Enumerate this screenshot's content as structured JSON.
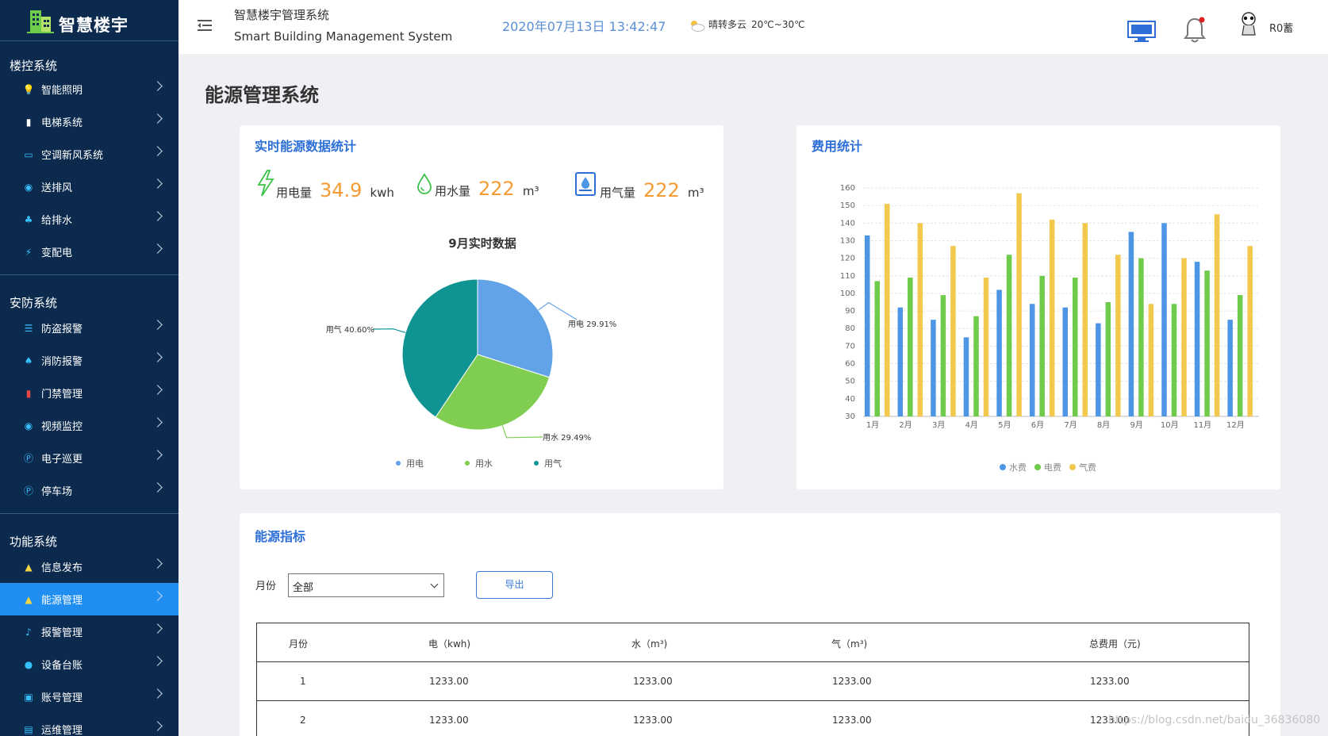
{
  "sidebar": {
    "logo_text": "智慧楼宇",
    "groups": [
      {
        "title": "楼控系统",
        "items": [
          {
            "label": "智能照明",
            "icon": "bulb-icon"
          },
          {
            "label": "电梯系统",
            "icon": "elevator-icon"
          },
          {
            "label": "空调新风系统",
            "icon": "aircon-icon"
          },
          {
            "label": "送排风",
            "icon": "fan-icon"
          },
          {
            "label": "给排水",
            "icon": "water-icon"
          },
          {
            "label": "变配电",
            "icon": "power-icon"
          }
        ]
      },
      {
        "title": "安防系统",
        "items": [
          {
            "label": "防盗报警",
            "icon": "list-icon"
          },
          {
            "label": "消防报警",
            "icon": "fire-icon"
          },
          {
            "label": "门禁管理",
            "icon": "door-icon"
          },
          {
            "label": "视频监控",
            "icon": "camera-icon"
          },
          {
            "label": "电子巡更",
            "icon": "patrol-icon"
          },
          {
            "label": "停车场",
            "icon": "parking-icon"
          }
        ]
      },
      {
        "title": "功能系统",
        "items": [
          {
            "label": "信息发布",
            "icon": "broadcast-icon"
          },
          {
            "label": "能源管理",
            "icon": "energy-icon",
            "active": true
          },
          {
            "label": "报警管理",
            "icon": "bell-icon"
          },
          {
            "label": "设备台账",
            "icon": "device-icon"
          },
          {
            "label": "账号管理",
            "icon": "account-icon"
          },
          {
            "label": "运维管理",
            "icon": "maintenance-icon"
          }
        ]
      }
    ]
  },
  "header": {
    "title_cn": "智慧楼宇管理系统",
    "title_en": "Smart Building Management System",
    "datetime": "2020年07月13日 13:42:47",
    "weather": "晴转多云",
    "temperature": "20℃~30℃",
    "username": "R0蓄"
  },
  "page_title": "能源管理系统",
  "realtime_card": {
    "title": "实时能源数据统计",
    "stats": [
      {
        "label": "用电量",
        "value": "34.9",
        "unit": "kwh",
        "icon": "lightning-icon"
      },
      {
        "label": "用水量",
        "value": "222",
        "unit": "m³",
        "icon": "water-drop-icon"
      },
      {
        "label": "用气量",
        "value": "222",
        "unit": "m³",
        "icon": "gas-icon"
      }
    ],
    "accent_color": "#f39c34"
  },
  "cost_card": {
    "title": "费用统计"
  },
  "indicator_card": {
    "title": "能源指标",
    "filter_label": "月份",
    "select_value": "全部",
    "export_label": "导出",
    "columns": [
      "月份",
      "电（kwh)",
      "水（m³)",
      "气（m³)",
      "总费用（元)"
    ],
    "rows": [
      [
        "1",
        "1233.00",
        "1233.00",
        "1233.00",
        "1233.00"
      ],
      [
        "2",
        "1233.00",
        "1233.00",
        "1233.00",
        "1233.00"
      ]
    ]
  },
  "watermark": "https://blog.csdn.net/baidu_36836080",
  "chart_data": [
    {
      "type": "pie",
      "title": "9月实时数据",
      "legend": "bottom",
      "slices": [
        {
          "name": "用电",
          "value": 29.91,
          "label": "用电 29.91%",
          "color": "#62a3e8"
        },
        {
          "name": "用水",
          "value": 29.49,
          "label": "用水 29.49%",
          "color": "#7fcd51"
        },
        {
          "name": "用气",
          "value": 40.6,
          "label": "用气 40.60%",
          "color": "#0f9493"
        }
      ]
    },
    {
      "type": "bar",
      "categories": [
        "1月",
        "2月",
        "3月",
        "4月",
        "5月",
        "6月",
        "7月",
        "8月",
        "9月",
        "10月",
        "11月",
        "12月"
      ],
      "series": [
        {
          "name": "水费",
          "color": "#4d96e6",
          "values": [
            133,
            92,
            85,
            75,
            102,
            94,
            92,
            83,
            135,
            140,
            118,
            85
          ]
        },
        {
          "name": "电费",
          "color": "#6fcb4a",
          "values": [
            107,
            109,
            99,
            87,
            122,
            110,
            109,
            95,
            120,
            94,
            113,
            99
          ]
        },
        {
          "name": "气费",
          "color": "#f2c94c",
          "values": [
            151,
            140,
            127,
            109,
            157,
            142,
            140,
            122,
            94,
            120,
            145,
            127
          ]
        }
      ],
      "yticks": [
        30,
        40,
        50,
        60,
        70,
        80,
        90,
        100,
        110,
        120,
        130,
        140,
        150,
        160
      ],
      "ylim": [
        30,
        160
      ],
      "legend": "bottom",
      "grid": true
    }
  ]
}
